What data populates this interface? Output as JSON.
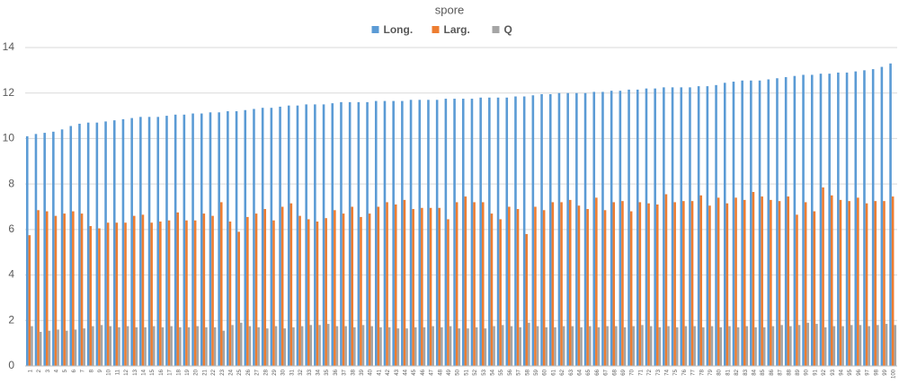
{
  "chart_data": {
    "type": "bar",
    "title": "spore",
    "categories": [
      "1",
      "2",
      "3",
      "4",
      "5",
      "6",
      "7",
      "8",
      "9",
      "10",
      "11",
      "12",
      "13",
      "14",
      "15",
      "16",
      "17",
      "18",
      "19",
      "20",
      "21",
      "22",
      "23",
      "24",
      "25",
      "26",
      "27",
      "28",
      "29",
      "30",
      "31",
      "32",
      "33",
      "34",
      "35",
      "36",
      "37",
      "38",
      "39",
      "40",
      "41",
      "42",
      "43",
      "44",
      "45",
      "46",
      "47",
      "48",
      "49",
      "50",
      "51",
      "52",
      "53",
      "54",
      "55",
      "56",
      "57",
      "58",
      "59",
      "60",
      "61",
      "62",
      "63",
      "64",
      "65",
      "66",
      "67",
      "68",
      "69",
      "70",
      "71",
      "72",
      "73",
      "74",
      "75",
      "76",
      "77",
      "78",
      "79",
      "80",
      "81",
      "82",
      "83",
      "84",
      "85",
      "86",
      "87",
      "88",
      "89",
      "90",
      "91",
      "92",
      "93",
      "94",
      "95",
      "96",
      "97",
      "98",
      "99",
      "100"
    ],
    "series": [
      {
        "name": "Long.",
        "color": "#5b9bd5",
        "values": [
          10.1,
          10.2,
          10.25,
          10.3,
          10.4,
          10.55,
          10.65,
          10.7,
          10.7,
          10.75,
          10.8,
          10.85,
          10.9,
          10.95,
          10.95,
          10.95,
          11.0,
          11.05,
          11.05,
          11.1,
          11.1,
          11.15,
          11.15,
          11.2,
          11.2,
          11.25,
          11.3,
          11.35,
          11.35,
          11.4,
          11.45,
          11.45,
          11.5,
          11.5,
          11.5,
          11.55,
          11.6,
          11.6,
          11.6,
          11.6,
          11.65,
          11.65,
          11.65,
          11.65,
          11.7,
          11.7,
          11.7,
          11.7,
          11.75,
          11.75,
          11.75,
          11.75,
          11.8,
          11.8,
          11.8,
          11.8,
          11.85,
          11.85,
          11.9,
          11.95,
          11.95,
          12.0,
          12.0,
          12.0,
          12.0,
          12.05,
          12.05,
          12.1,
          12.1,
          12.15,
          12.15,
          12.2,
          12.2,
          12.25,
          12.25,
          12.25,
          12.25,
          12.3,
          12.3,
          12.35,
          12.45,
          12.5,
          12.55,
          12.55,
          12.55,
          12.6,
          12.65,
          12.7,
          12.75,
          12.8,
          12.8,
          12.85,
          12.85,
          12.9,
          12.9,
          12.95,
          13.0,
          13.05,
          13.15,
          13.3
        ]
      },
      {
        "name": "Larg.",
        "color": "#ed7d31",
        "values": [
          5.75,
          6.85,
          6.8,
          6.6,
          6.7,
          6.8,
          6.7,
          6.15,
          6.05,
          6.3,
          6.3,
          6.3,
          6.6,
          6.65,
          6.3,
          6.35,
          6.4,
          6.75,
          6.4,
          6.4,
          6.7,
          6.6,
          7.2,
          6.35,
          5.9,
          6.55,
          6.7,
          6.9,
          6.4,
          7.0,
          7.15,
          6.6,
          6.45,
          6.35,
          6.5,
          6.85,
          6.7,
          7.0,
          6.55,
          6.7,
          7.0,
          7.2,
          7.1,
          7.3,
          6.9,
          6.95,
          6.95,
          6.95,
          6.45,
          7.2,
          7.45,
          7.2,
          7.2,
          6.7,
          6.45,
          7.0,
          6.9,
          5.8,
          7.0,
          6.85,
          7.2,
          7.2,
          7.3,
          7.05,
          6.9,
          7.4,
          6.85,
          7.2,
          7.25,
          6.8,
          7.2,
          7.15,
          7.1,
          7.55,
          7.2,
          7.25,
          7.25,
          7.5,
          7.05,
          7.4,
          7.15,
          7.4,
          7.3,
          7.65,
          7.45,
          7.3,
          7.25,
          7.45,
          6.65,
          7.2,
          6.8,
          7.85,
          7.5,
          7.3,
          7.25,
          7.4,
          7.15,
          7.25,
          7.25,
          7.45
        ]
      },
      {
        "name": "Q",
        "color": "#a5a5a5",
        "values": [
          1.75,
          1.5,
          1.55,
          1.6,
          1.55,
          1.6,
          1.65,
          1.75,
          1.8,
          1.75,
          1.7,
          1.75,
          1.7,
          1.7,
          1.75,
          1.7,
          1.75,
          1.7,
          1.7,
          1.75,
          1.7,
          1.7,
          1.55,
          1.8,
          1.9,
          1.75,
          1.7,
          1.65,
          1.75,
          1.65,
          1.7,
          1.75,
          1.8,
          1.8,
          1.85,
          1.75,
          1.75,
          1.7,
          1.8,
          1.75,
          1.7,
          1.7,
          1.65,
          1.65,
          1.7,
          1.7,
          1.75,
          1.7,
          1.75,
          1.65,
          1.65,
          1.7,
          1.65,
          1.75,
          1.8,
          1.75,
          1.7,
          1.9,
          1.75,
          1.7,
          1.7,
          1.75,
          1.75,
          1.7,
          1.75,
          1.7,
          1.75,
          1.75,
          1.7,
          1.75,
          1.8,
          1.75,
          1.7,
          1.75,
          1.7,
          1.75,
          1.75,
          1.7,
          1.75,
          1.7,
          1.75,
          1.7,
          1.75,
          1.7,
          1.7,
          1.75,
          1.8,
          1.75,
          1.8,
          1.9,
          1.85,
          1.7,
          1.75,
          1.75,
          1.8,
          1.8,
          1.75,
          1.8,
          1.85,
          1.8
        ]
      }
    ],
    "ylim": [
      0,
      14
    ],
    "yticks": [
      0,
      2,
      4,
      6,
      8,
      10,
      12,
      14
    ],
    "grid": true
  }
}
